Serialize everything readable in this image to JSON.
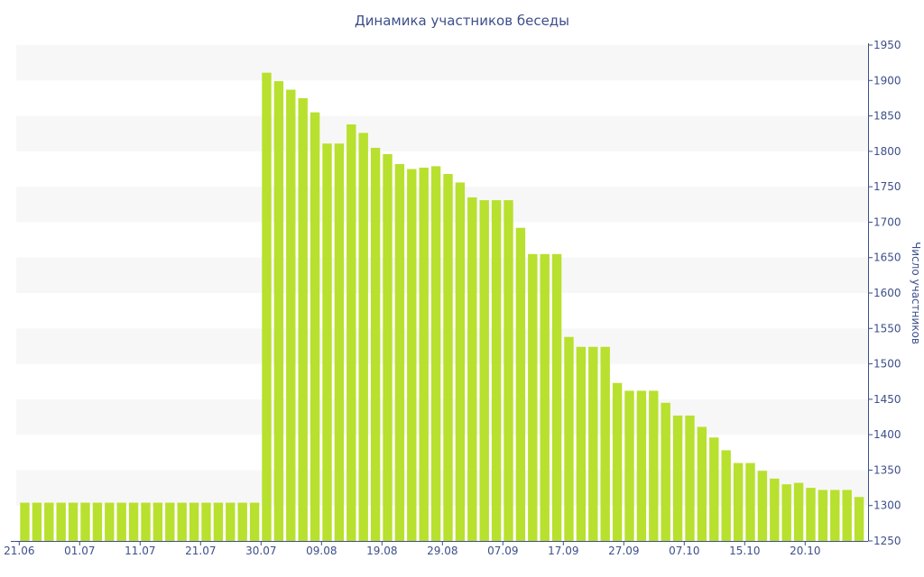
{
  "chart_data": {
    "type": "bar",
    "title": "Динамика участников беседы",
    "xlabel": "",
    "ylabel": "Число участников",
    "ylim": [
      1250,
      1950
    ],
    "yticks": [
      1250,
      1300,
      1350,
      1400,
      1450,
      1500,
      1550,
      1600,
      1650,
      1700,
      1750,
      1800,
      1850,
      1900,
      1950
    ],
    "grid": "alternating horizontal bands",
    "y_axis_side": "right",
    "bar_color": "#b8e02e",
    "band_color": "#f7f7f7",
    "text_color": "#3d4f8a",
    "xticks": [
      {
        "label": "21.06",
        "index": 0
      },
      {
        "label": "01.07",
        "index": 5
      },
      {
        "label": "11.07",
        "index": 10
      },
      {
        "label": "21.07",
        "index": 15
      },
      {
        "label": "30.07",
        "index": 20
      },
      {
        "label": "09.08",
        "index": 25
      },
      {
        "label": "19.08",
        "index": 30
      },
      {
        "label": "29.08",
        "index": 35
      },
      {
        "label": "07.09",
        "index": 40
      },
      {
        "label": "17.09",
        "index": 45
      },
      {
        "label": "27.09",
        "index": 50
      },
      {
        "label": "07.10",
        "index": 55
      },
      {
        "label": "15.10",
        "index": 60
      },
      {
        "label": "20.10",
        "index": 65
      }
    ],
    "values": [
      1304,
      1304,
      1304,
      1304,
      1304,
      1304,
      1304,
      1304,
      1304,
      1304,
      1304,
      1304,
      1304,
      1304,
      1304,
      1304,
      1304,
      1304,
      1304,
      1304,
      1911,
      1899,
      1887,
      1875,
      1855,
      1811,
      1811,
      1838,
      1826,
      1805,
      1796,
      1782,
      1775,
      1777,
      1779,
      1768,
      1756,
      1735,
      1731,
      1731,
      1731,
      1692,
      1655,
      1655,
      1655,
      1538,
      1524,
      1524,
      1524,
      1473,
      1462,
      1462,
      1462,
      1445,
      1427,
      1427,
      1411,
      1396,
      1378,
      1360,
      1360,
      1349,
      1338,
      1330,
      1332,
      1325,
      1322,
      1322,
      1322,
      1312
    ]
  }
}
